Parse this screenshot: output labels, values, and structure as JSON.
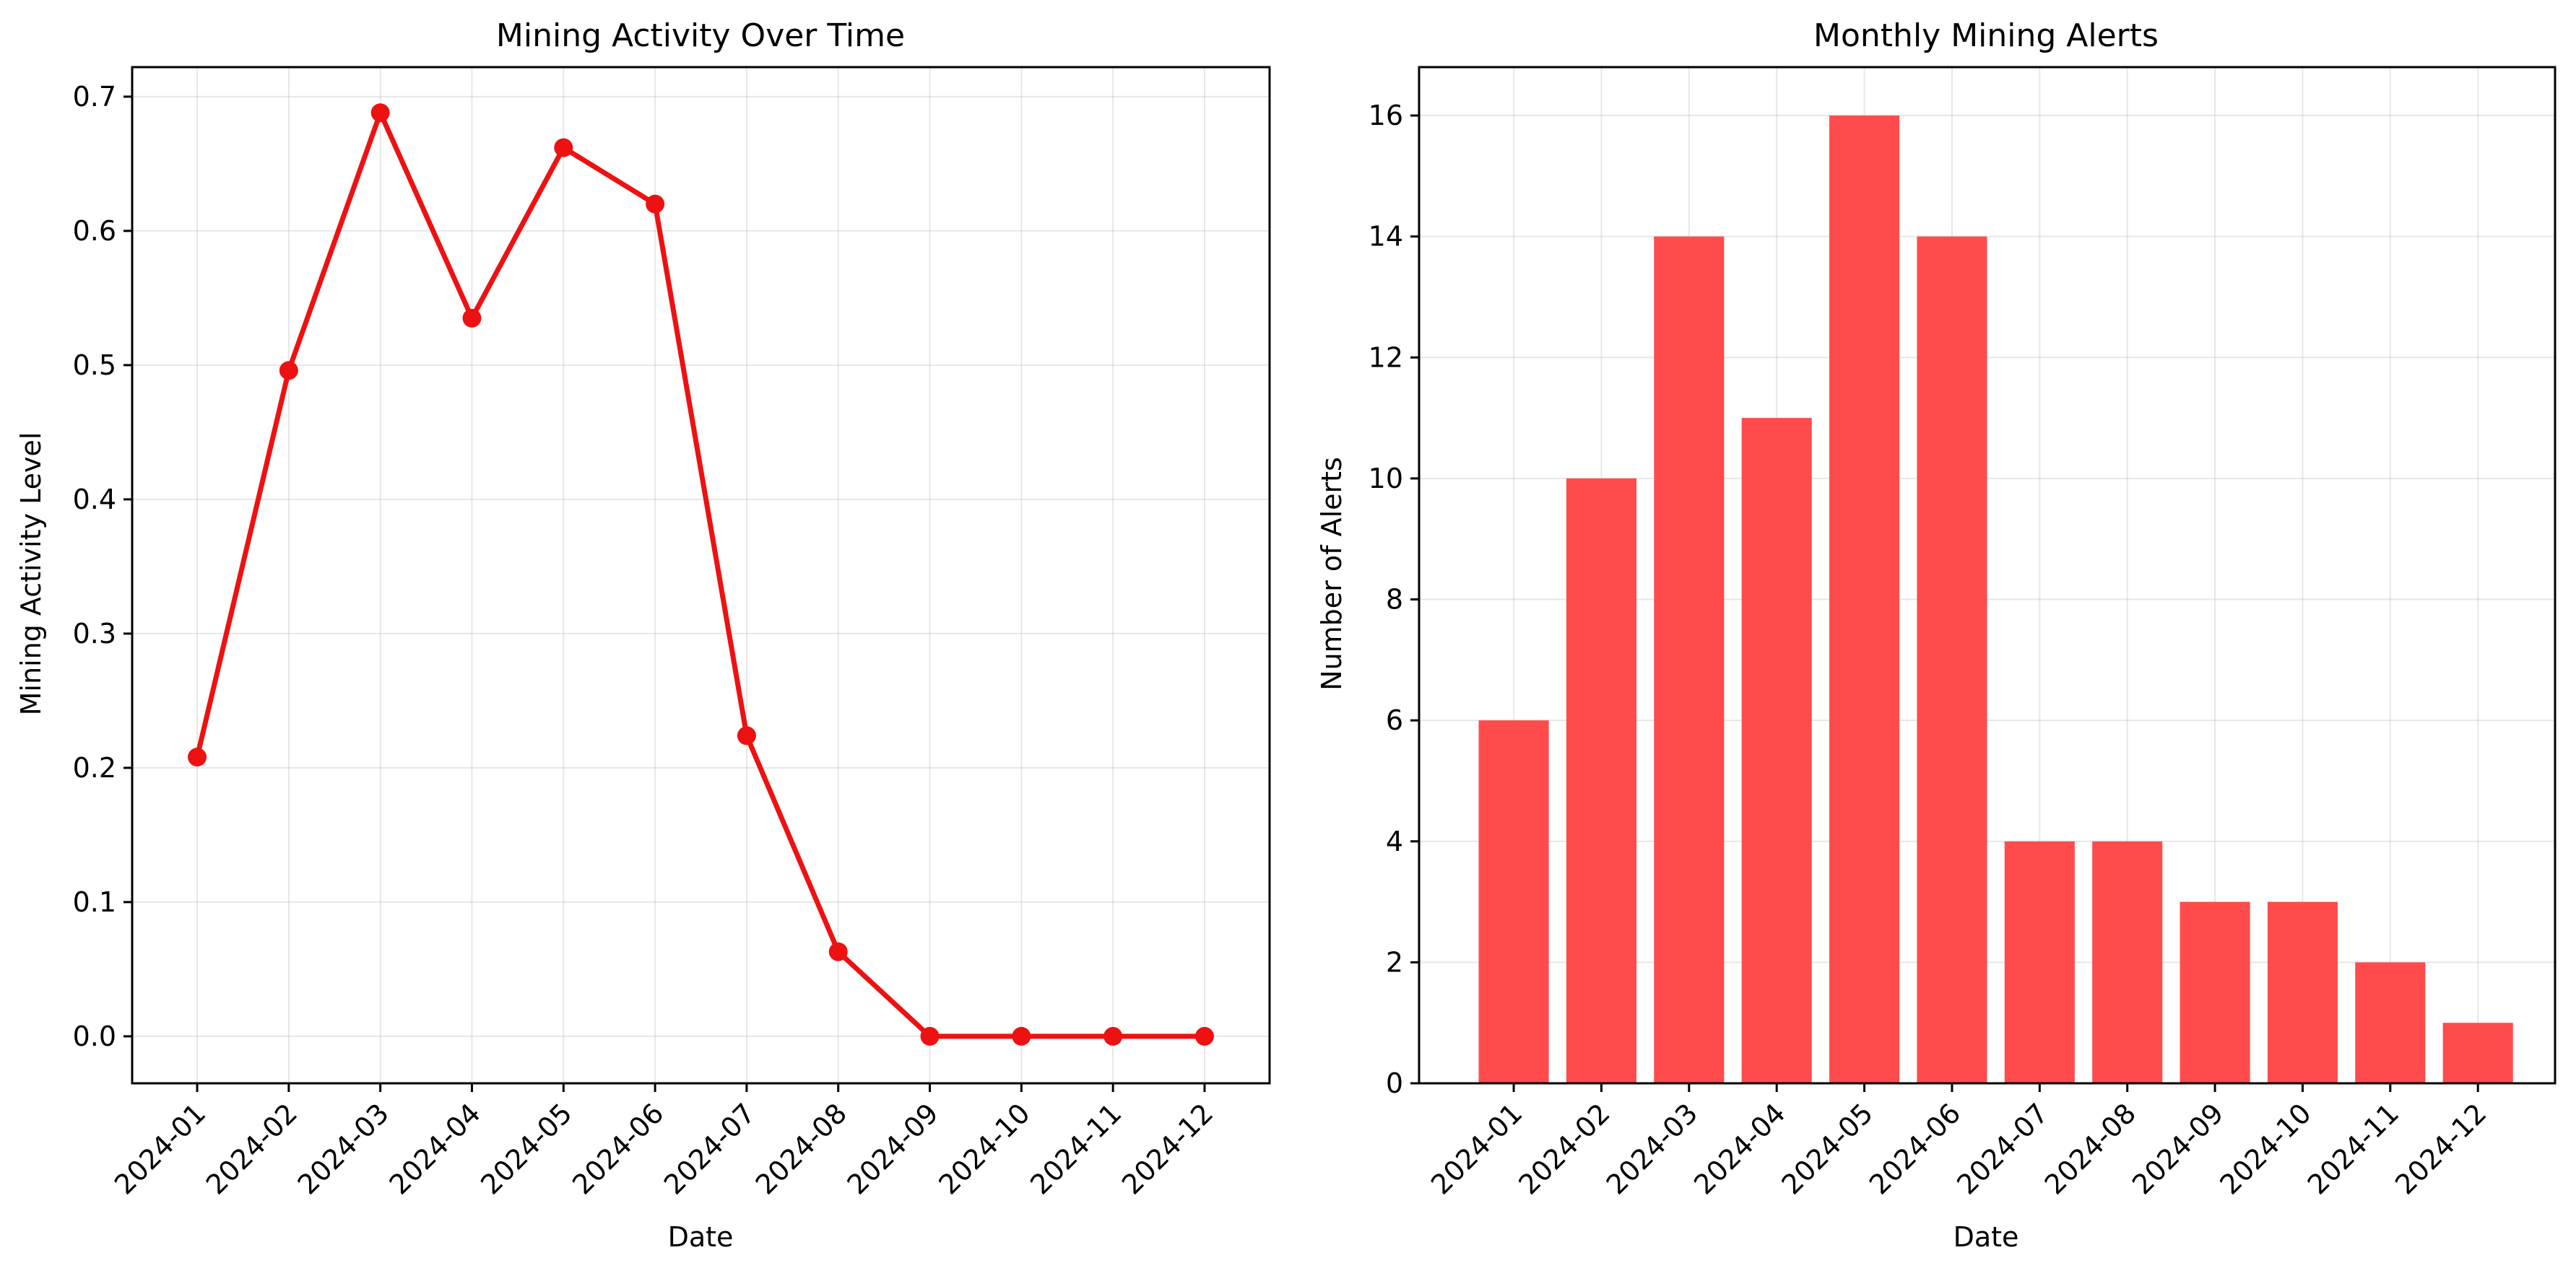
{
  "colors": {
    "line": "#ee1111",
    "bar": "#ff4b4b",
    "background": "#ffffff"
  },
  "chart_data": [
    {
      "type": "line",
      "title": "Mining Activity Over Time",
      "xlabel": "Date",
      "ylabel": "Mining Activity Level",
      "categories": [
        "2024-01",
        "2024-02",
        "2024-03",
        "2024-04",
        "2024-05",
        "2024-06",
        "2024-07",
        "2024-08",
        "2024-09",
        "2024-10",
        "2024-11",
        "2024-12"
      ],
      "values": [
        0.208,
        0.496,
        0.688,
        0.535,
        0.662,
        0.62,
        0.224,
        0.063,
        0.0,
        0.0,
        0.0,
        0.0
      ],
      "ylim": [
        -0.035,
        0.722
      ],
      "yticks": [
        0.0,
        0.1,
        0.2,
        0.3,
        0.4,
        0.5,
        0.6,
        0.7
      ],
      "ytick_labels": [
        "0.0",
        "0.1",
        "0.2",
        "0.3",
        "0.4",
        "0.5",
        "0.6",
        "0.7"
      ],
      "grid": true,
      "marker": "circle"
    },
    {
      "type": "bar",
      "title": "Monthly Mining Alerts",
      "xlabel": "Date",
      "ylabel": "Number of Alerts",
      "categories": [
        "2024-01",
        "2024-02",
        "2024-03",
        "2024-04",
        "2024-05",
        "2024-06",
        "2024-07",
        "2024-08",
        "2024-09",
        "2024-10",
        "2024-11",
        "2024-12"
      ],
      "values": [
        6,
        10,
        14,
        11,
        16,
        14,
        4,
        4,
        3,
        3,
        2,
        1
      ],
      "ylim": [
        0,
        16.8
      ],
      "yticks": [
        0,
        2,
        4,
        6,
        8,
        10,
        12,
        14,
        16
      ],
      "ytick_labels": [
        "0",
        "2",
        "4",
        "6",
        "8",
        "10",
        "12",
        "14",
        "16"
      ],
      "grid": true
    }
  ]
}
